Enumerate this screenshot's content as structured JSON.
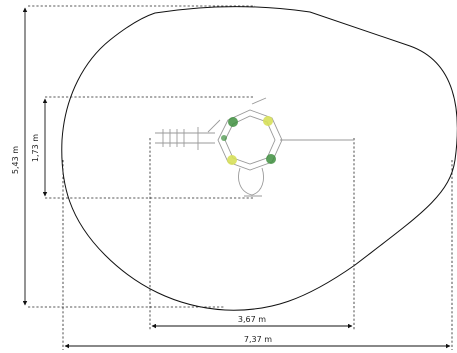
{
  "dimensions": {
    "total_height": "5,43 m",
    "equipment_depth": "1,73 m",
    "equipment_width": "3,67 m",
    "total_width": "7,37 m"
  },
  "colors": {
    "outline": "#111111",
    "dashed_lines": "#222222",
    "equipment_lines": "#9a9a9a",
    "green_markers": "#3f8f3f",
    "yellow_markers": "#d7e05a"
  }
}
